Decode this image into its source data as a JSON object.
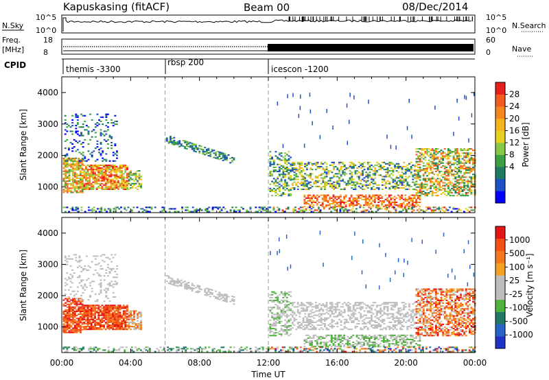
{
  "header": {
    "title": "Kapuskasing (fitACF)",
    "beam": "Beam 00",
    "date": "08/Dec/2014"
  },
  "status_panels": {
    "left_top": "N.Sky",
    "left_mid_1": "Freq.",
    "left_mid_2": "[MHz]",
    "left_cpid": "CPID",
    "right_top": "N.Search",
    "right_mid": "Nave",
    "top_ticks_left": [
      "10^5",
      "10^0"
    ],
    "top_ticks_right": [
      "10^5",
      "10^0"
    ],
    "mid_ticks_left": [
      "18",
      "8"
    ],
    "mid_ticks_right": [
      "60",
      "0"
    ],
    "cpid_labels": [
      "themis -3300",
      "rbsp 200",
      "icescon -1200"
    ]
  },
  "chart_data": [
    {
      "type": "heatmap",
      "title": "",
      "ylabel": "Slant Range [km]",
      "xlabel": "",
      "x_ticks": [
        "00:00",
        "04:00",
        "08:00",
        "12:00",
        "16:00",
        "20:00",
        "00:00"
      ],
      "y_ticks": [
        "1000",
        "2000",
        "3000",
        "4000"
      ],
      "xlim": [
        0,
        24
      ],
      "ylim": [
        180,
        4500
      ],
      "colorbar": {
        "label": "Power [dB]",
        "ticks": [
          "28",
          "24",
          "20",
          "16",
          "12",
          "8",
          "4"
        ],
        "colors": [
          "#0000ff",
          "#1f4fc8",
          "#1f7a64",
          "#3ca046",
          "#87c846",
          "#e6d21e",
          "#f5b41e",
          "#f5871e",
          "#f55a1e",
          "#e61e1e"
        ]
      }
    },
    {
      "type": "heatmap",
      "title": "",
      "ylabel": "Slant Range [km]",
      "xlabel": "Time UT",
      "x_ticks": [
        "00:00",
        "04:00",
        "08:00",
        "12:00",
        "16:00",
        "20:00",
        "00:00"
      ],
      "y_ticks": [
        "1000",
        "2000",
        "3000",
        "4000"
      ],
      "xlim": [
        0,
        24
      ],
      "ylim": [
        180,
        4500
      ],
      "colorbar": {
        "label": "Velocity [m s⁻¹]",
        "ticks": [
          "1000",
          "500",
          "100",
          "25",
          "-25",
          "-100",
          "-500",
          "-1000"
        ],
        "colors": [
          "#1e32c8",
          "#2864c8",
          "#1e7864",
          "#50b43c",
          "#bebebe",
          "#bebebe",
          "#f5a01e",
          "#f5781e",
          "#f55014",
          "#e61414"
        ]
      }
    }
  ]
}
